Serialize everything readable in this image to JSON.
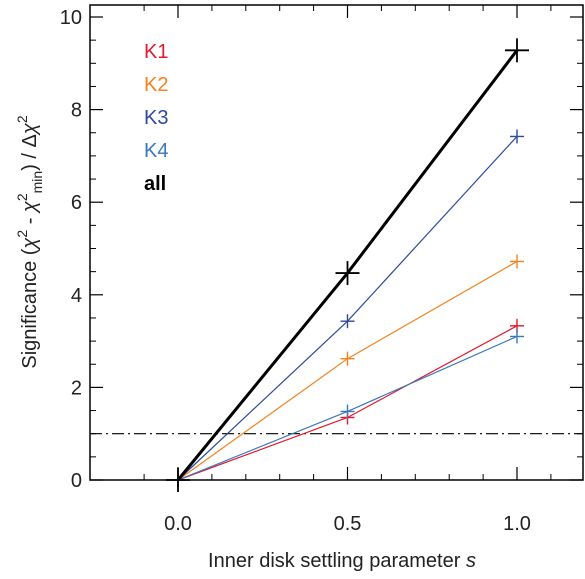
{
  "chart_data": {
    "type": "line",
    "x": [
      0.0,
      0.5,
      1.0
    ],
    "xlim": [
      -0.2,
      1.2
    ],
    "ylim": [
      -0.2,
      10.0
    ],
    "xticks": [
      "0.0",
      "0.5",
      "1.0"
    ],
    "yticks": [
      "0",
      "2",
      "4",
      "6",
      "8",
      "10"
    ],
    "xlabel_parts": [
      "Inner disk settling parameter ",
      "s"
    ],
    "ylabel_parts": [
      "Significance (",
      "χ",
      "2",
      " - ",
      "χ",
      "2",
      "min",
      ") / Δ",
      "χ",
      "2"
    ],
    "threshold_line": {
      "y": 1.0,
      "style": "dash-dot",
      "color": "#000000"
    },
    "grid": false,
    "legend_position": "top-left",
    "series": [
      {
        "name": "K1",
        "values": [
          0.0,
          1.35,
          3.33
        ],
        "color": "#e31a2d",
        "width": 1.2,
        "marker_size": 7
      },
      {
        "name": "K2",
        "values": [
          0.0,
          2.62,
          4.72
        ],
        "color": "#f5821f",
        "width": 1.2,
        "marker_size": 7
      },
      {
        "name": "K3",
        "values": [
          0.0,
          3.43,
          7.42
        ],
        "color": "#2e4a9b",
        "width": 1.2,
        "marker_size": 7
      },
      {
        "name": "K4",
        "values": [
          0.0,
          1.48,
          3.1
        ],
        "color": "#3a78c0",
        "width": 1.2,
        "marker_size": 7
      },
      {
        "name": "all",
        "values": [
          0.0,
          4.47,
          9.28
        ],
        "color": "#000000",
        "width": 3,
        "marker_size": 12
      }
    ]
  }
}
